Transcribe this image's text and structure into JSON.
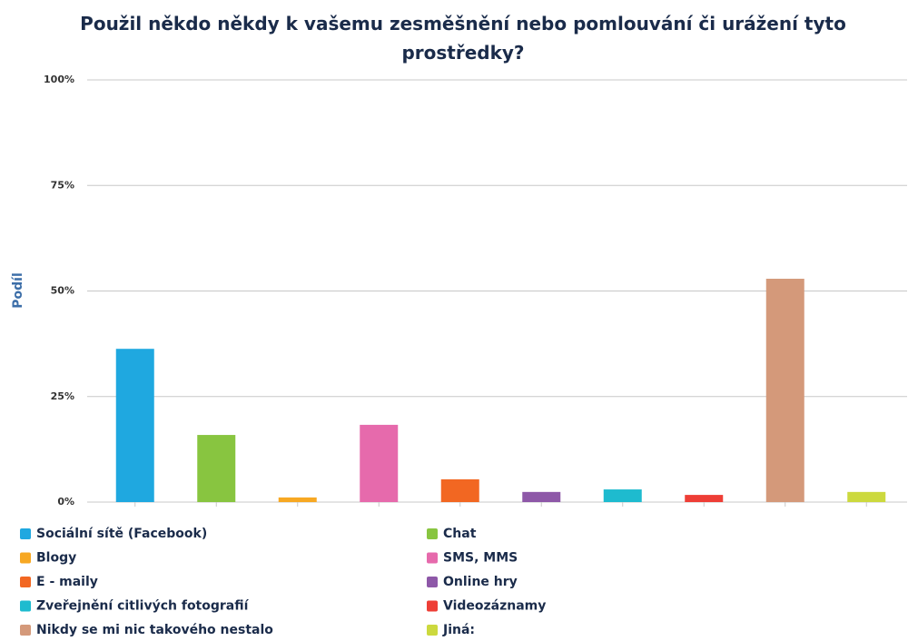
{
  "chart_data": {
    "type": "bar",
    "title": "Použil někdo někdy k vašemu zesměšnění nebo pomlouvání či urážení tyto prostředky?",
    "y_label": "Podíl",
    "categories": [
      "Sociální sítě (Facebook)",
      "Chat",
      "Blogy",
      "SMS, MMS",
      "E - maily",
      "Online hry",
      "Zveřejnění citlivých fotografií",
      "Videozáznamy",
      "Nikdy se mi nic takového nestalo",
      "Jiná:"
    ],
    "values": [
      36.3,
      15.9,
      1.1,
      18.3,
      5.4,
      2.4,
      3.0,
      1.7,
      52.9,
      2.4
    ],
    "colors": [
      "#1fa8e0",
      "#88c540",
      "#f7a823",
      "#e66aac",
      "#f26722",
      "#8e58a8",
      "#1ebbcf",
      "#ee3e36",
      "#d4997a",
      "#ccd93e"
    ],
    "ylim": [
      0,
      100
    ],
    "yticks": [
      {
        "value": 0,
        "label": "0%"
      },
      {
        "value": 25,
        "label": "25%"
      },
      {
        "value": 50,
        "label": "50%"
      },
      {
        "value": 75,
        "label": "75%"
      },
      {
        "value": 100,
        "label": "100%"
      }
    ],
    "grid": true,
    "legend": "bottom"
  }
}
